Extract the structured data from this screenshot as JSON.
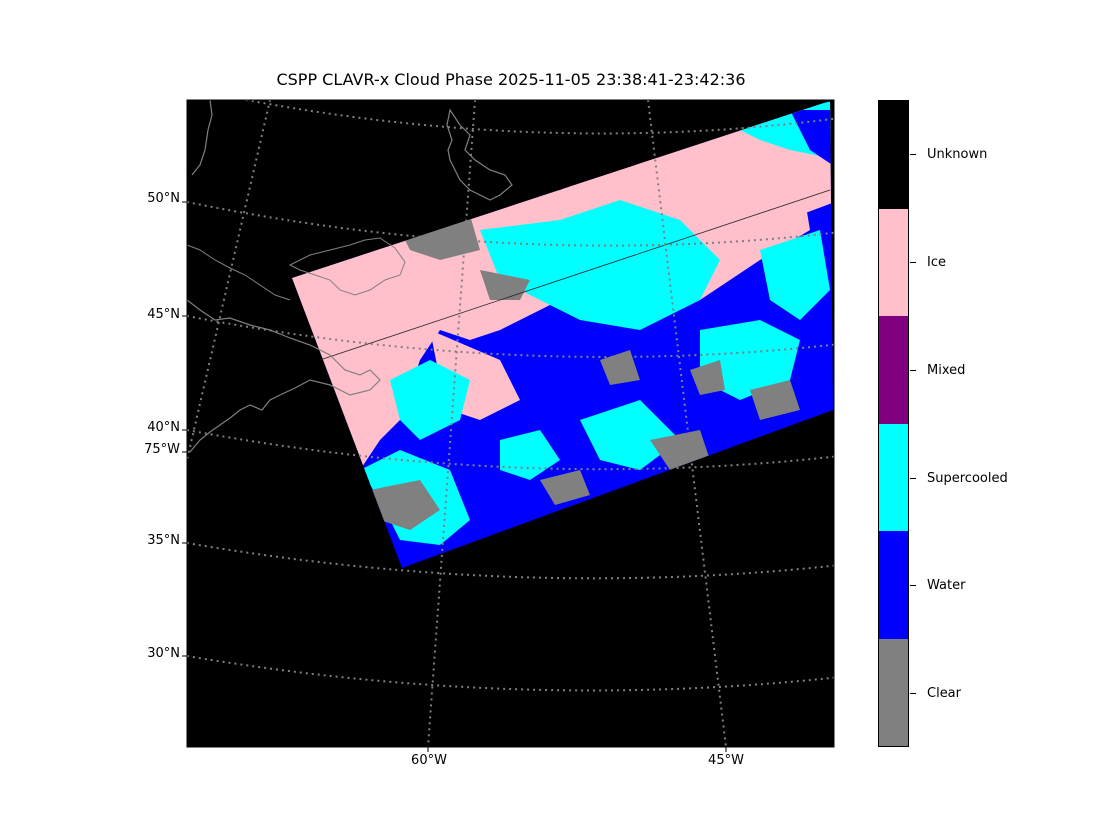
{
  "title": "CSPP CLAVR-x Cloud Phase 2025-11-05 23:38:41-23:42:36",
  "map": {
    "projection_hint": "conic",
    "lat_labels": [
      "50°N",
      "45°N",
      "40°N",
      "35°N",
      "30°N"
    ],
    "lon_labels_bottom": [
      "60°W",
      "45°W"
    ],
    "lon_labels_left": [
      "75°W"
    ],
    "graticule_color": "#808080",
    "background_color": "#000000",
    "coastline_color": "#808080"
  },
  "colorbar": {
    "categories": [
      {
        "label": "Unknown",
        "color": "#000000"
      },
      {
        "label": "Ice",
        "color": "#ffc0cb"
      },
      {
        "label": "Mixed",
        "color": "#800080"
      },
      {
        "label": "Supercooled",
        "color": "#00ffff"
      },
      {
        "label": "Water",
        "color": "#0000ff"
      },
      {
        "label": "Clear",
        "color": "#808080"
      }
    ]
  }
}
